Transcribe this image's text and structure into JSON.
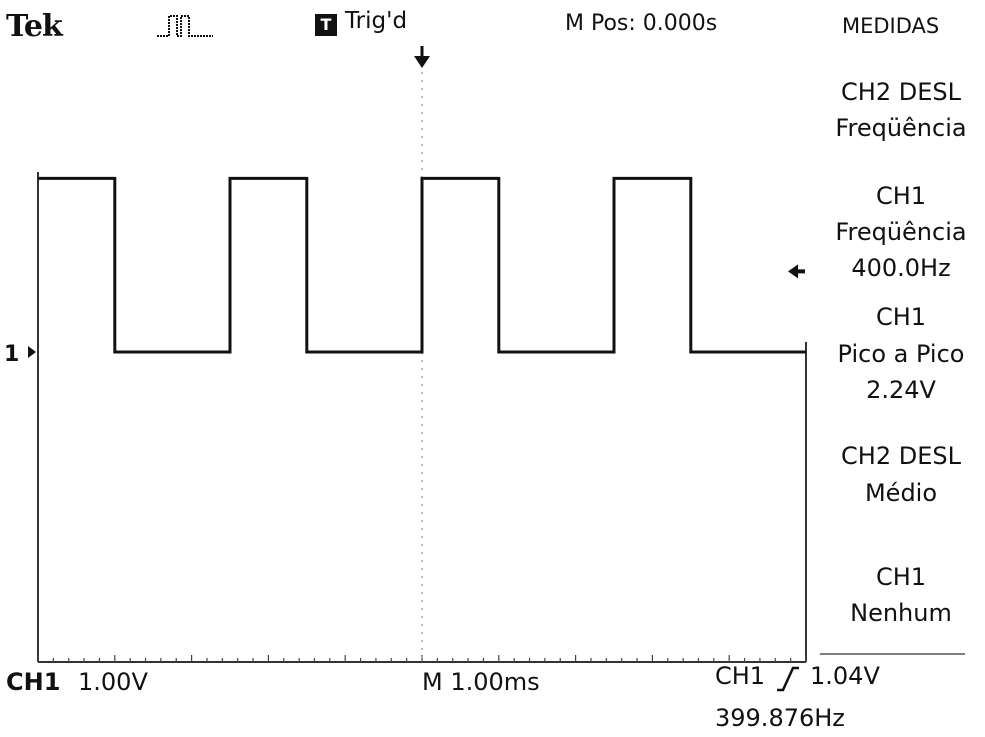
{
  "header": {
    "brand": "Tek",
    "acquire_icon": "pulse-icon",
    "trigger_badge": "T",
    "trigger_status": "Trig'd",
    "position": "M Pos: 0.000s"
  },
  "menu": {
    "title": "MEDIDAS",
    "items": [
      {
        "line1": "CH2 DESL",
        "line2": "Freqüência",
        "line3": ""
      },
      {
        "line1": "CH1",
        "line2": "Freqüência",
        "line3": "400.0Hz"
      },
      {
        "line1": "CH1",
        "line2": "Pico a Pico",
        "line3": "2.24V"
      },
      {
        "line1": "CH2 DESL",
        "line2": "Médio",
        "line3": ""
      },
      {
        "line1": "CH1",
        "line2": "Nenhum",
        "line3": ""
      }
    ]
  },
  "footer": {
    "channel": "CH1",
    "volts_div": "1.00V",
    "timebase": "M 1.00ms",
    "trigger_source": "CH1",
    "trigger_level": "1.04V",
    "frequency": "399.876Hz"
  },
  "markers": {
    "channel_marker": "1"
  },
  "chart_data": {
    "type": "line",
    "title": "",
    "xlabel": "",
    "ylabel": "",
    "x_unit": "ms",
    "y_unit": "V",
    "grid": true,
    "series": [
      {
        "x": [
          0,
          1.0,
          1.0,
          2.5,
          2.5,
          3.5,
          3.5,
          5.0,
          5.0,
          6.0,
          6.0,
          7.5,
          7.5,
          8.5,
          8.5,
          10.0
        ],
        "y": [
          2.24,
          2.24,
          0,
          0,
          2.24,
          2.24,
          0,
          0,
          2.24,
          2.24,
          0,
          0,
          2.24,
          2.24,
          0,
          0
        ]
      }
    ],
    "xlim": [
      0,
      10
    ],
    "ylim": [
      -4,
      4
    ]
  }
}
